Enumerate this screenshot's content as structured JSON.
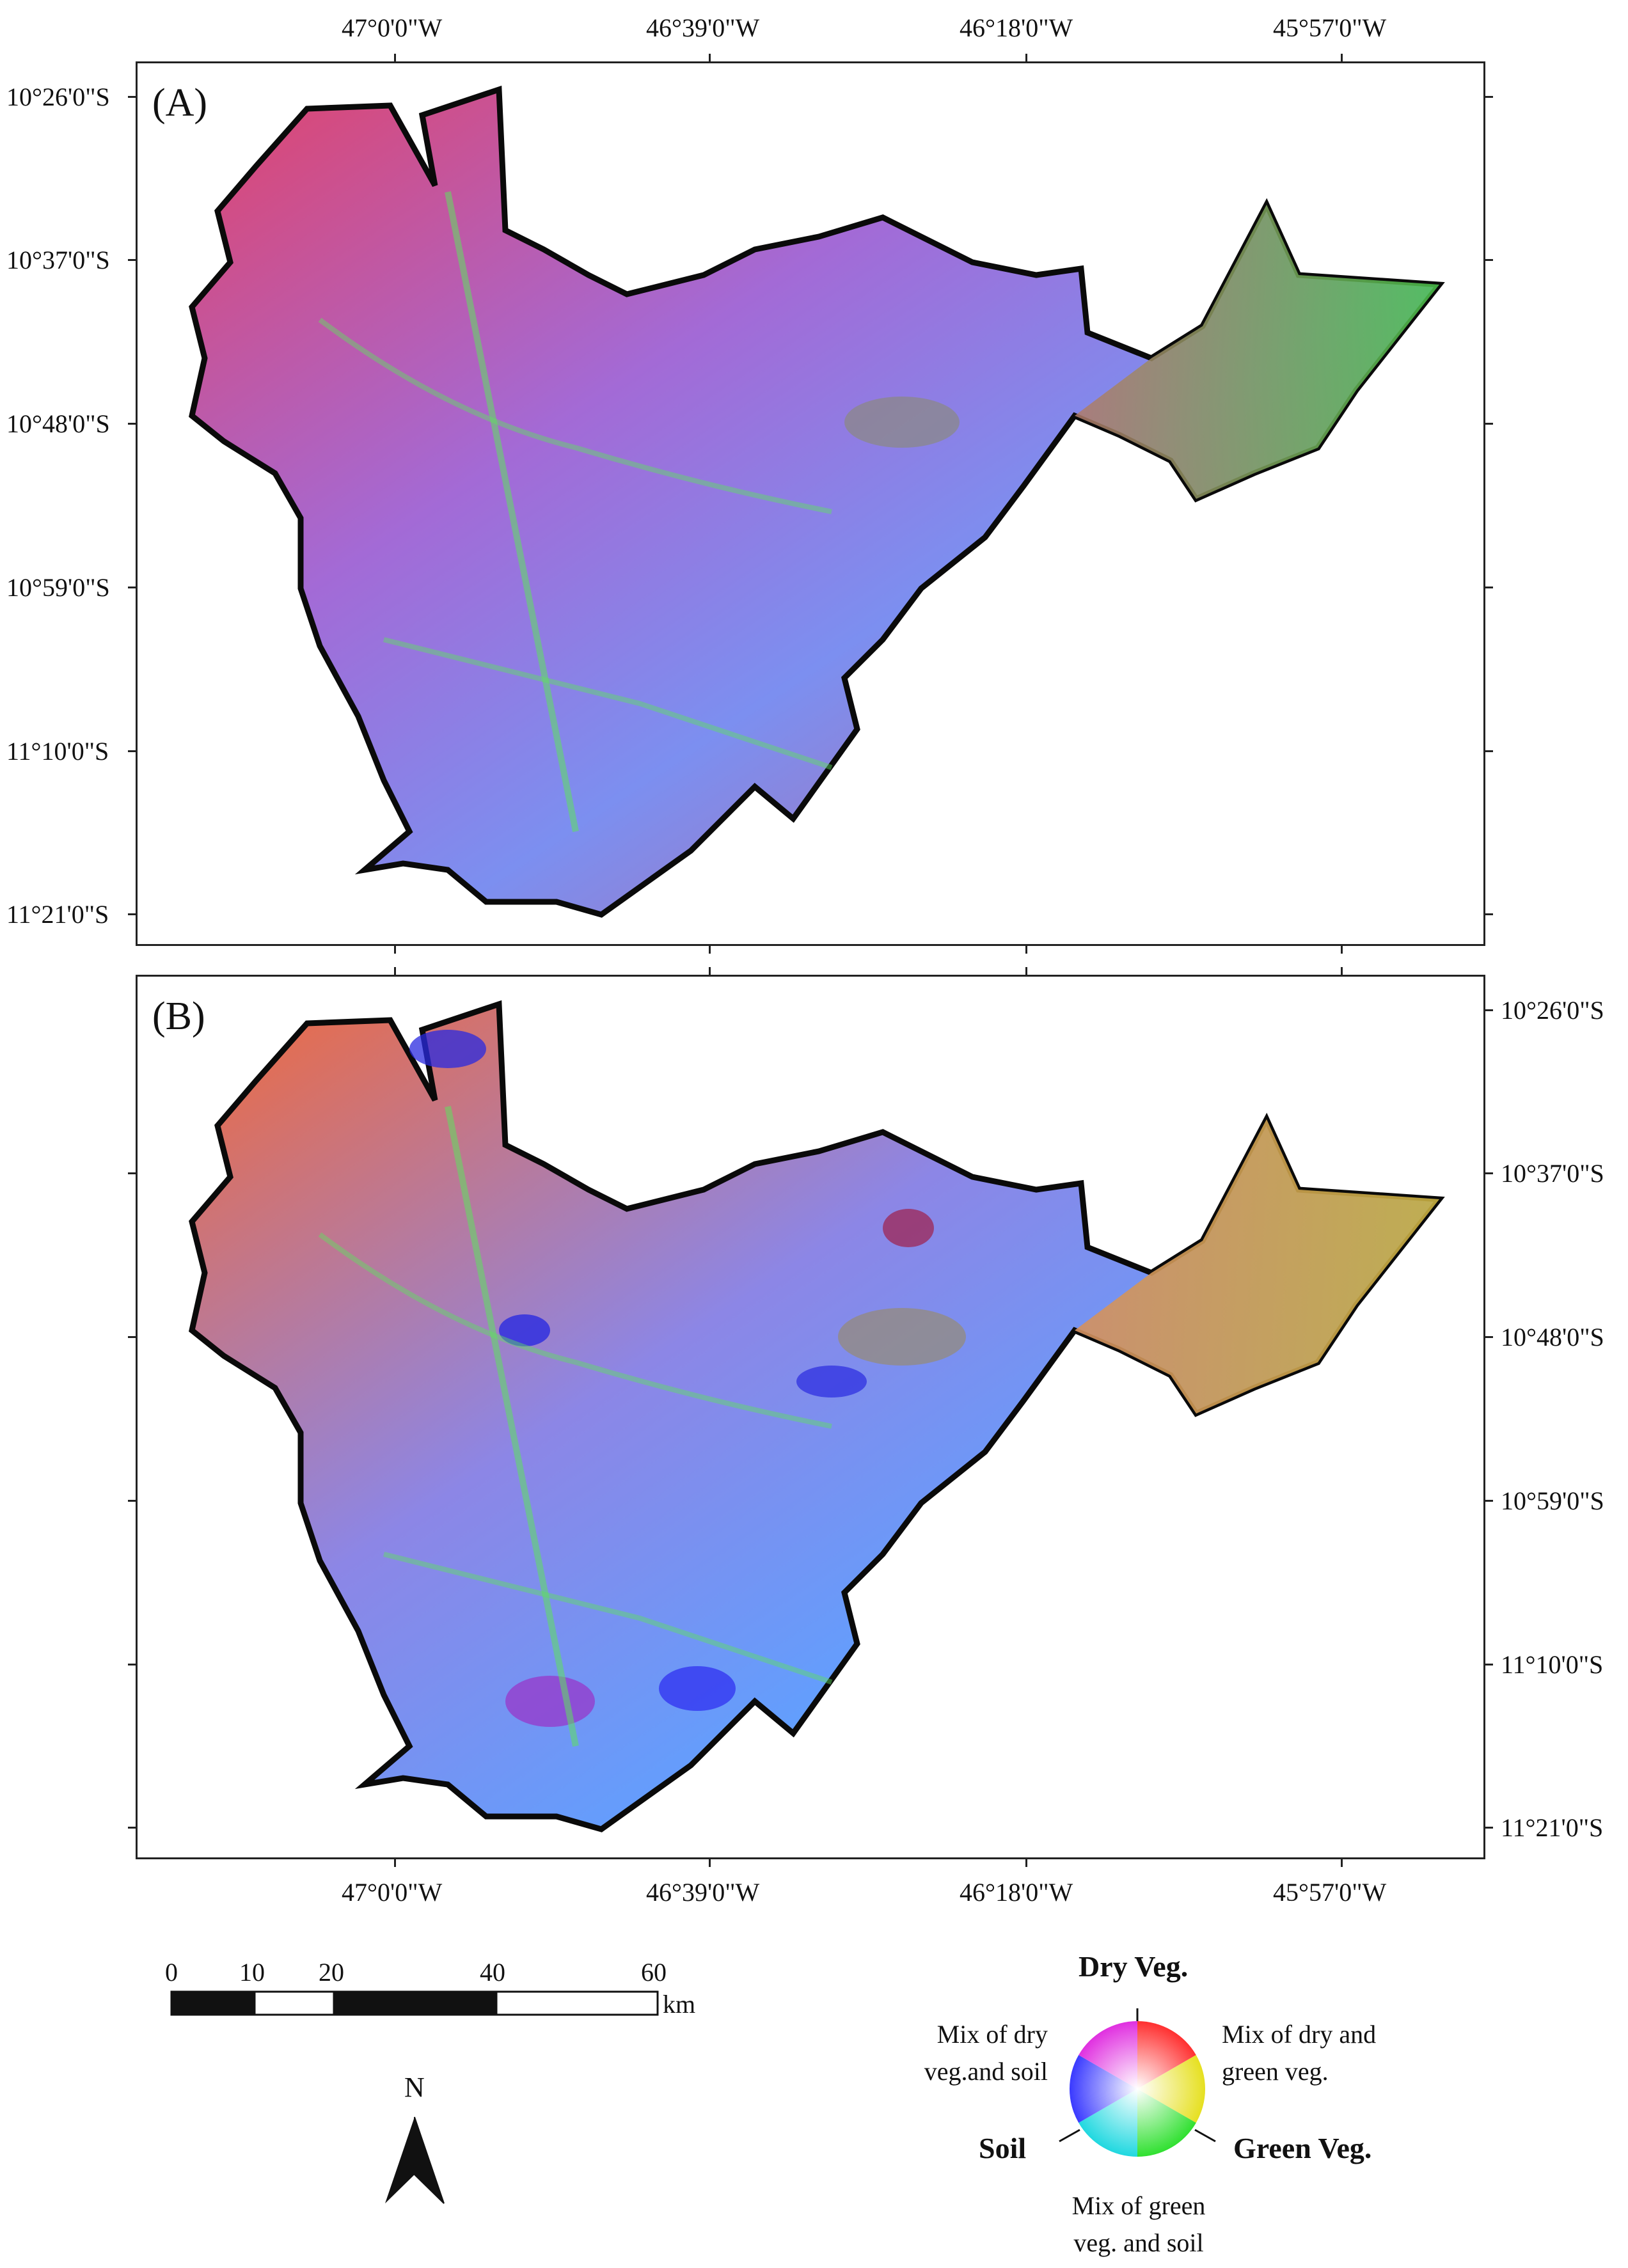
{
  "panels": [
    {
      "id": "A",
      "label": "(A)"
    },
    {
      "id": "B",
      "label": "(B)"
    }
  ],
  "longitude_ticks": [
    "47°0'0\"W",
    "46°39'0\"W",
    "46°18'0\"W",
    "45°57'0\"W"
  ],
  "latitude_ticks": [
    "10°26'0\"S",
    "10°37'0\"S",
    "10°48'0\"S",
    "10°59'0\"S",
    "11°10'0\"S",
    "11°21'0\"S"
  ],
  "scale_bar": {
    "labels": [
      "0",
      "10",
      "20",
      "40",
      "60"
    ],
    "unit": "km",
    "values_km": [
      0,
      10,
      20,
      40,
      60
    ]
  },
  "north_arrow": {
    "label": "N",
    "icon": "north-arrow-icon"
  },
  "legend": {
    "top": "Dry Veg.",
    "top_right": [
      "Mix of dry and",
      "green veg."
    ],
    "right": "Green Veg.",
    "bottom": [
      "Mix of green",
      "veg. and soil"
    ],
    "left": "Soil",
    "top_left": [
      "Mix of dry",
      "veg.and soil"
    ],
    "colors": {
      "dry_veg": "#ff2020",
      "green_veg": "#30e030",
      "soil": "#3030ff",
      "mix_dry_green": "#e0e020",
      "mix_green_soil": "#20e0e0",
      "mix_dry_soil": "#e020e0"
    }
  },
  "map_colors": {
    "boundary": "#0a0a0a",
    "panel_a_base": "#9b6fc4",
    "panel_b_base": "#c98a6e"
  }
}
